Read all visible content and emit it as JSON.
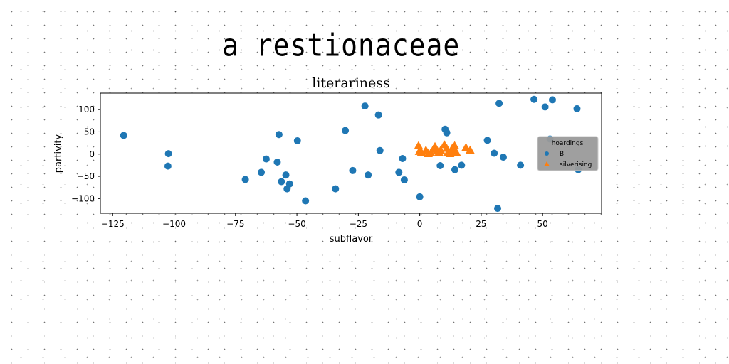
{
  "figure": {
    "suptitle": "a restionaceae"
  },
  "chart_data": {
    "type": "scatter",
    "title": "literariness",
    "xlabel": "subflavor",
    "ylabel": "partivity",
    "xlim": [
      -130,
      74
    ],
    "ylim": [
      -133,
      137
    ],
    "xticks": [
      -125,
      -100,
      -75,
      -50,
      -25,
      0,
      25,
      50
    ],
    "xtick_labels": [
      "−125",
      "−100",
      "−75",
      "−50",
      "−25",
      "0",
      "25",
      "50"
    ],
    "yticks": [
      -100,
      -50,
      0,
      50,
      100
    ],
    "ytick_labels": [
      "−100",
      "−50",
      "0",
      "50",
      "100"
    ],
    "grid": false,
    "legend": {
      "title": "hoardings",
      "placement": "center-right"
    },
    "series": [
      {
        "name": "B",
        "marker": "circle",
        "color": "#1f77b4",
        "points": [
          [
            -120.5,
            42
          ],
          [
            -102.3,
            1
          ],
          [
            -102.5,
            -27
          ],
          [
            -71,
            -57
          ],
          [
            -64.5,
            -41
          ],
          [
            -62.5,
            -11
          ],
          [
            -58,
            -18
          ],
          [
            -57.3,
            44
          ],
          [
            -56.3,
            -62
          ],
          [
            -54.5,
            -47
          ],
          [
            -54,
            -78
          ],
          [
            -53,
            -67
          ],
          [
            -49.8,
            30
          ],
          [
            -46.5,
            -105
          ],
          [
            -34.3,
            -78
          ],
          [
            -30.3,
            53
          ],
          [
            -27.3,
            -37
          ],
          [
            -22.3,
            108
          ],
          [
            -21,
            -47
          ],
          [
            -16.8,
            88
          ],
          [
            -16.2,
            8
          ],
          [
            -8.5,
            -41
          ],
          [
            -7,
            -10
          ],
          [
            -6.3,
            -58
          ],
          [
            0,
            -96
          ],
          [
            8.3,
            -26
          ],
          [
            10.3,
            56
          ],
          [
            11,
            48
          ],
          [
            14.3,
            -35
          ],
          [
            17,
            -25
          ],
          [
            27.5,
            31
          ],
          [
            30.3,
            2
          ],
          [
            31.7,
            -122
          ],
          [
            32.3,
            114
          ],
          [
            34,
            -7
          ],
          [
            41,
            -25
          ],
          [
            46.5,
            123
          ],
          [
            51,
            106
          ],
          [
            53,
            34
          ],
          [
            54,
            122
          ],
          [
            64,
            102
          ],
          [
            64.5,
            -35
          ]
        ]
      },
      {
        "name": "silverising",
        "marker": "triangle",
        "color": "#ff7f0e",
        "points": [
          [
            -0.5,
            18
          ],
          [
            -0.2,
            5
          ],
          [
            0.7,
            3
          ],
          [
            2.5,
            8
          ],
          [
            3.5,
            0
          ],
          [
            4.5,
            2
          ],
          [
            5.5,
            10
          ],
          [
            6.2,
            16
          ],
          [
            7,
            6
          ],
          [
            7.8,
            3
          ],
          [
            8.5,
            8
          ],
          [
            10,
            20
          ],
          [
            11,
            12
          ],
          [
            11.5,
            3
          ],
          [
            12.3,
            0
          ],
          [
            13.3,
            13
          ],
          [
            13.8,
            6
          ],
          [
            14.2,
            18
          ],
          [
            15,
            2
          ],
          [
            18.8,
            14
          ],
          [
            20.5,
            8
          ]
        ]
      }
    ]
  }
}
